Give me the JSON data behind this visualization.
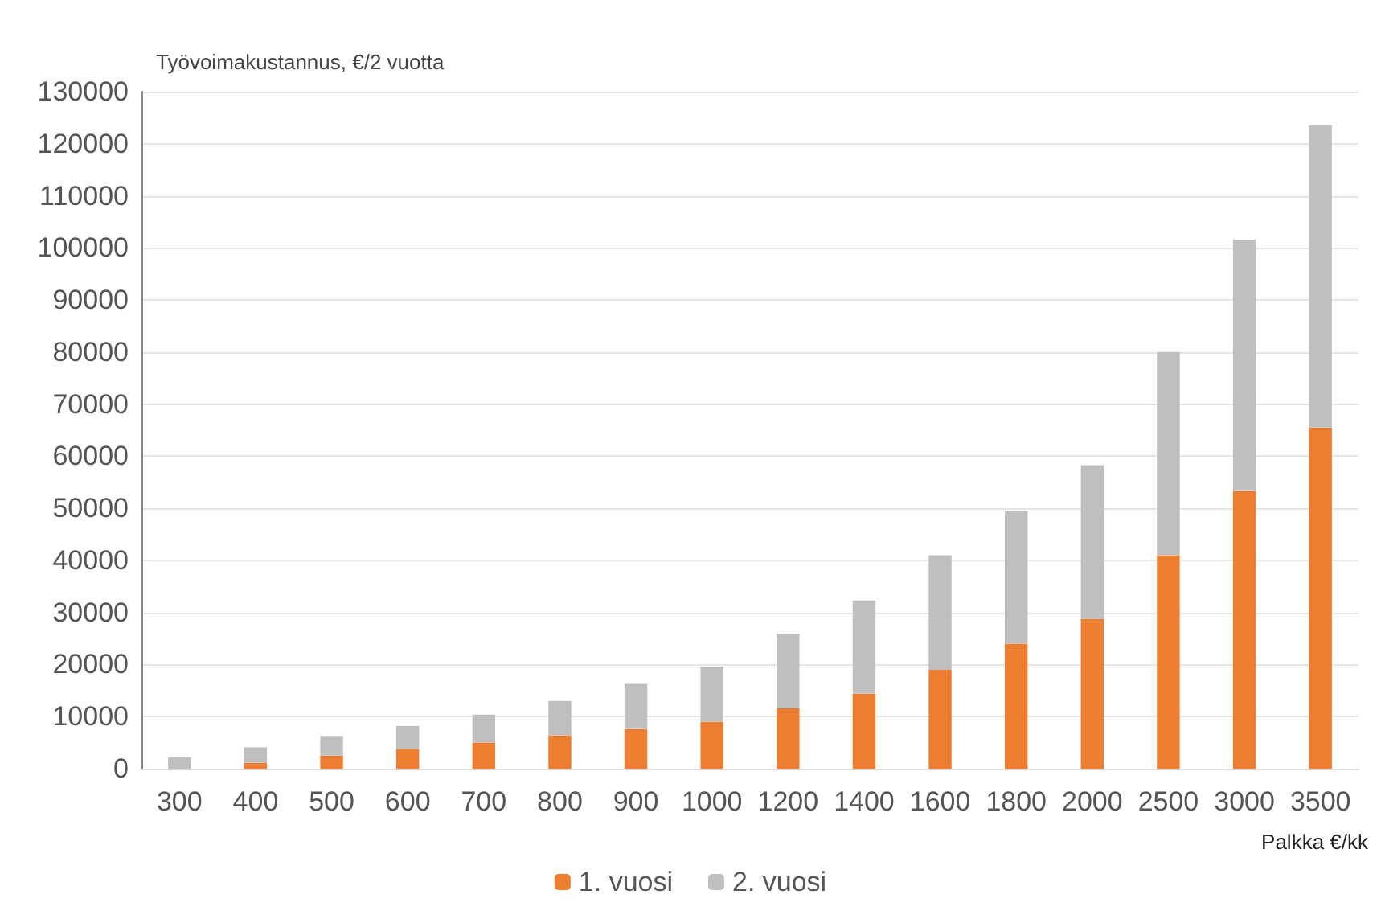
{
  "chart_data": {
    "type": "bar",
    "ylabel": "Työvoimakustannus, €/2 vuotta",
    "xlabel": "Palkka €/kk",
    "categories": [
      "300",
      "400",
      "500",
      "600",
      "700",
      "800",
      "900",
      "1000",
      "1200",
      "1400",
      "1600",
      "1800",
      "2000",
      "2500",
      "3000",
      "3500"
    ],
    "stacked": true,
    "series": [
      {
        "name": "1. vuosi",
        "color": "#ed7d31",
        "values": [
          0,
          1100,
          2500,
          3800,
          5000,
          6400,
          7600,
          9000,
          11600,
          14400,
          19000,
          24000,
          28800,
          41000,
          53300,
          65500
        ]
      },
      {
        "name": "2. vuosi",
        "color": "#bfbfbf",
        "values": [
          2200,
          3000,
          3800,
          4400,
          5400,
          6600,
          8700,
          10600,
          14300,
          17900,
          22000,
          25500,
          29500,
          39000,
          48300,
          58000
        ]
      }
    ],
    "ylim": [
      0,
      130000
    ],
    "yticks": [
      0,
      10000,
      20000,
      30000,
      40000,
      50000,
      60000,
      70000,
      80000,
      90000,
      100000,
      110000,
      120000,
      130000
    ],
    "grid": "y",
    "legend": "bottom"
  }
}
